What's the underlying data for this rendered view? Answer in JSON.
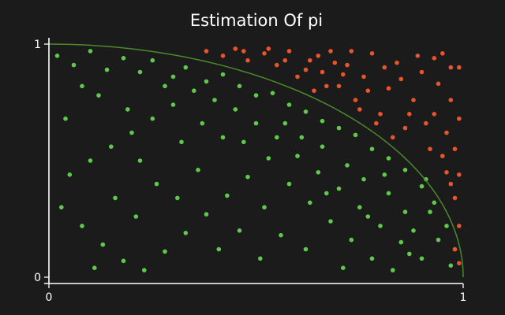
{
  "chart_data": {
    "type": "scatter",
    "title": "Estimation Of pi",
    "xlabel": "",
    "ylabel": "",
    "xlim": [
      0,
      1
    ],
    "ylim": [
      0,
      1
    ],
    "x_ticks": [
      "0",
      "1"
    ],
    "y_ticks": [
      "0",
      "1"
    ],
    "grid": false,
    "background": "#1b1b1b",
    "colors": {
      "inside": "#5ec94a",
      "outside": "#e8542c",
      "boundary": "#4a8a2a"
    },
    "series": [
      {
        "category": "inside",
        "points": [
          [
            0.02,
            0.95
          ],
          [
            0.06,
            0.91
          ],
          [
            0.1,
            0.97
          ],
          [
            0.14,
            0.89
          ],
          [
            0.18,
            0.94
          ],
          [
            0.22,
            0.88
          ],
          [
            0.25,
            0.93
          ],
          [
            0.3,
            0.86
          ],
          [
            0.33,
            0.9
          ],
          [
            0.38,
            0.84
          ],
          [
            0.42,
            0.87
          ],
          [
            0.46,
            0.82
          ],
          [
            0.5,
            0.78
          ],
          [
            0.54,
            0.79
          ],
          [
            0.58,
            0.74
          ],
          [
            0.62,
            0.71
          ],
          [
            0.66,
            0.67
          ],
          [
            0.7,
            0.64
          ],
          [
            0.74,
            0.61
          ],
          [
            0.78,
            0.55
          ],
          [
            0.82,
            0.51
          ],
          [
            0.86,
            0.46
          ],
          [
            0.9,
            0.39
          ],
          [
            0.93,
            0.32
          ],
          [
            0.96,
            0.22
          ],
          [
            0.98,
            0.12
          ],
          [
            0.97,
            0.05
          ],
          [
            0.9,
            0.08
          ],
          [
            0.85,
            0.15
          ],
          [
            0.8,
            0.22
          ],
          [
            0.75,
            0.3
          ],
          [
            0.7,
            0.38
          ],
          [
            0.65,
            0.45
          ],
          [
            0.6,
            0.52
          ],
          [
            0.55,
            0.6
          ],
          [
            0.5,
            0.66
          ],
          [
            0.45,
            0.72
          ],
          [
            0.4,
            0.76
          ],
          [
            0.35,
            0.8
          ],
          [
            0.3,
            0.74
          ],
          [
            0.25,
            0.68
          ],
          [
            0.2,
            0.62
          ],
          [
            0.15,
            0.56
          ],
          [
            0.1,
            0.5
          ],
          [
            0.05,
            0.44
          ],
          [
            0.03,
            0.3
          ],
          [
            0.08,
            0.22
          ],
          [
            0.13,
            0.14
          ],
          [
            0.18,
            0.07
          ],
          [
            0.23,
            0.03
          ],
          [
            0.28,
            0.11
          ],
          [
            0.33,
            0.19
          ],
          [
            0.38,
            0.27
          ],
          [
            0.43,
            0.35
          ],
          [
            0.48,
            0.43
          ],
          [
            0.53,
            0.51
          ],
          [
            0.58,
            0.4
          ],
          [
            0.63,
            0.32
          ],
          [
            0.68,
            0.24
          ],
          [
            0.73,
            0.16
          ],
          [
            0.78,
            0.08
          ],
          [
            0.83,
            0.03
          ],
          [
            0.88,
            0.2
          ],
          [
            0.92,
            0.28
          ],
          [
            0.12,
            0.78
          ],
          [
            0.22,
            0.5
          ],
          [
            0.32,
            0.58
          ],
          [
            0.42,
            0.6
          ],
          [
            0.52,
            0.3
          ],
          [
            0.62,
            0.12
          ],
          [
            0.72,
            0.48
          ],
          [
            0.82,
            0.36
          ],
          [
            0.16,
            0.34
          ],
          [
            0.26,
            0.4
          ],
          [
            0.36,
            0.46
          ],
          [
            0.46,
            0.2
          ],
          [
            0.56,
            0.18
          ],
          [
            0.66,
            0.56
          ],
          [
            0.76,
            0.42
          ],
          [
            0.86,
            0.28
          ],
          [
            0.94,
            0.16
          ],
          [
            0.04,
            0.68
          ],
          [
            0.08,
            0.82
          ],
          [
            0.19,
            0.72
          ],
          [
            0.28,
            0.82
          ],
          [
            0.37,
            0.66
          ],
          [
            0.47,
            0.58
          ],
          [
            0.57,
            0.66
          ],
          [
            0.67,
            0.36
          ],
          [
            0.77,
            0.26
          ],
          [
            0.87,
            0.1
          ],
          [
            0.11,
            0.04
          ],
          [
            0.21,
            0.26
          ],
          [
            0.31,
            0.34
          ],
          [
            0.41,
            0.12
          ],
          [
            0.51,
            0.08
          ],
          [
            0.61,
            0.6
          ],
          [
            0.71,
            0.04
          ],
          [
            0.81,
            0.44
          ],
          [
            0.91,
            0.42
          ]
        ]
      },
      {
        "category": "outside",
        "points": [
          [
            0.38,
            0.97
          ],
          [
            0.42,
            0.95
          ],
          [
            0.45,
            0.98
          ],
          [
            0.48,
            0.93
          ],
          [
            0.52,
            0.96
          ],
          [
            0.55,
            0.91
          ],
          [
            0.58,
            0.97
          ],
          [
            0.6,
            0.86
          ],
          [
            0.63,
            0.93
          ],
          [
            0.66,
            0.88
          ],
          [
            0.68,
            0.97
          ],
          [
            0.7,
            0.82
          ],
          [
            0.72,
            0.91
          ],
          [
            0.74,
            0.76
          ],
          [
            0.76,
            0.86
          ],
          [
            0.78,
            0.96
          ],
          [
            0.8,
            0.7
          ],
          [
            0.82,
            0.81
          ],
          [
            0.84,
            0.92
          ],
          [
            0.86,
            0.64
          ],
          [
            0.88,
            0.76
          ],
          [
            0.9,
            0.88
          ],
          [
            0.92,
            0.55
          ],
          [
            0.93,
            0.7
          ],
          [
            0.94,
            0.83
          ],
          [
            0.95,
            0.96
          ],
          [
            0.96,
            0.45
          ],
          [
            0.96,
            0.62
          ],
          [
            0.97,
            0.76
          ],
          [
            0.98,
            0.34
          ],
          [
            0.98,
            0.55
          ],
          [
            0.99,
            0.22
          ],
          [
            0.99,
            0.44
          ],
          [
            0.99,
            0.68
          ],
          [
            0.99,
            0.9
          ],
          [
            0.97,
            0.9
          ],
          [
            0.93,
            0.94
          ],
          [
            0.89,
            0.95
          ],
          [
            0.85,
            0.85
          ],
          [
            0.81,
            0.9
          ],
          [
            0.77,
            0.8
          ],
          [
            0.73,
            0.97
          ],
          [
            0.69,
            0.92
          ],
          [
            0.65,
            0.95
          ],
          [
            0.62,
            0.89
          ],
          [
            0.57,
            0.93
          ],
          [
            0.53,
            0.98
          ],
          [
            0.47,
            0.97
          ],
          [
            0.91,
            0.66
          ],
          [
            0.95,
            0.52
          ],
          [
            0.97,
            0.4
          ],
          [
            0.98,
            0.12
          ],
          [
            0.99,
            0.06
          ],
          [
            0.87,
            0.7
          ],
          [
            0.83,
            0.6
          ],
          [
            0.79,
            0.66
          ],
          [
            0.75,
            0.72
          ],
          [
            0.71,
            0.87
          ],
          [
            0.67,
            0.82
          ],
          [
            0.64,
            0.8
          ]
        ]
      }
    ]
  }
}
